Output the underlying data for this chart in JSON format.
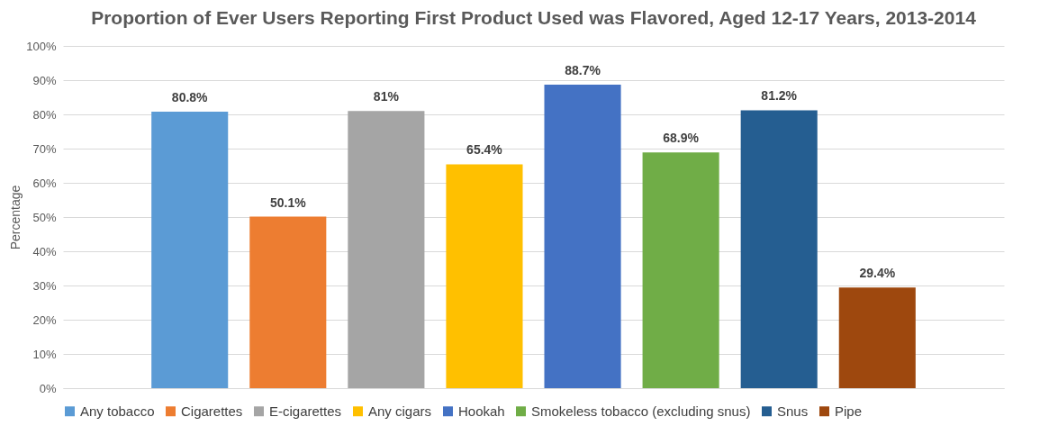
{
  "chart_data": {
    "type": "bar",
    "title": "Proportion of Ever Users Reporting First Product Used was Flavored, Aged 12-17 Years, 2013-2014",
    "ylabel": "Percentage",
    "categories": [
      null,
      null,
      null,
      null,
      null,
      null,
      null,
      null
    ],
    "stacked": true,
    "series": [
      {
        "name": "Any tobacco",
        "color": "#5b9bd5",
        "values": [
          80.8,
          null,
          null,
          null,
          null,
          null,
          null,
          null
        ],
        "value_labels": [
          "80.8%",
          null,
          null,
          null,
          null,
          null,
          null,
          null
        ]
      },
      {
        "name": "Cigarettes",
        "color": "#ed7d31",
        "values": [
          null,
          50.1,
          null,
          null,
          null,
          null,
          null,
          null
        ],
        "value_labels": [
          null,
          "50.1%",
          null,
          null,
          null,
          null,
          null,
          null
        ]
      },
      {
        "name": "E-cigarettes",
        "color": "#a5a5a5",
        "values": [
          null,
          null,
          81,
          null,
          null,
          null,
          null,
          null
        ],
        "value_labels": [
          null,
          null,
          "81%",
          null,
          null,
          null,
          null,
          null
        ]
      },
      {
        "name": "Any cigars",
        "color": "#ffc000",
        "values": [
          null,
          null,
          null,
          65.4,
          null,
          null,
          null,
          null
        ],
        "value_labels": [
          null,
          null,
          null,
          "65.4%",
          null,
          null,
          null,
          null
        ]
      },
      {
        "name": "Hookah",
        "color": "#4472c4",
        "values": [
          null,
          null,
          null,
          null,
          88.7,
          null,
          null,
          null
        ],
        "value_labels": [
          null,
          null,
          null,
          null,
          "88.7%",
          null,
          null,
          null
        ]
      },
      {
        "name": "Smokeless tobacco (excluding snus)",
        "color": "#70ad47",
        "values": [
          null,
          null,
          null,
          null,
          null,
          68.9,
          null,
          null
        ],
        "value_labels": [
          null,
          null,
          null,
          null,
          null,
          "68.9%",
          null,
          null
        ]
      },
      {
        "name": "Snus",
        "color": "#255e91",
        "values": [
          null,
          null,
          null,
          null,
          null,
          null,
          81.2,
          null
        ],
        "value_labels": [
          null,
          null,
          null,
          null,
          null,
          null,
          "81.2%",
          null
        ]
      },
      {
        "name": "Pipe",
        "color": "#9e480e",
        "values": [
          null,
          null,
          null,
          null,
          null,
          null,
          null,
          29.4
        ],
        "value_labels": [
          null,
          null,
          null,
          null,
          null,
          null,
          null,
          "29.4%"
        ]
      }
    ],
    "ylim": [
      0,
      100
    ],
    "yticks": [
      {
        "value": 0,
        "label": "0%"
      },
      {
        "value": 10,
        "label": "10%"
      },
      {
        "value": 20,
        "label": "20%"
      },
      {
        "value": 30,
        "label": "30%"
      },
      {
        "value": 40,
        "label": "40%"
      },
      {
        "value": 50,
        "label": "50%"
      },
      {
        "value": 60,
        "label": "60%"
      },
      {
        "value": 70,
        "label": "70%"
      },
      {
        "value": 80,
        "label": "80%"
      },
      {
        "value": 90,
        "label": "90%"
      },
      {
        "value": 100,
        "label": "100%"
      }
    ],
    "grid": "y",
    "legend": "bottom",
    "tick_labels": "y"
  }
}
